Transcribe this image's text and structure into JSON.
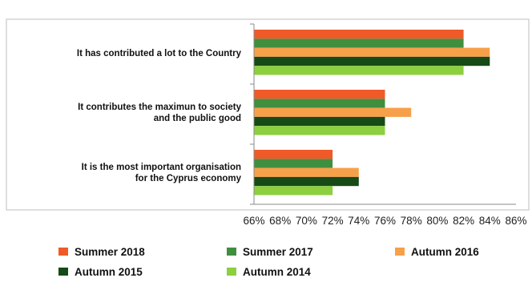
{
  "chart_data": {
    "type": "bar",
    "orientation": "horizontal",
    "categories": [
      [
        "It has contributed a lot to the Country"
      ],
      [
        "It contributes the maximun to society",
        "and the public good"
      ],
      [
        "It is the most important organisation",
        "for the Cyprus economy"
      ]
    ],
    "series": [
      {
        "name": "Summer 2018",
        "color": "#f05a28",
        "values": [
          82,
          76,
          72
        ]
      },
      {
        "name": "Summer 2017",
        "color": "#3f8f3f",
        "values": [
          82,
          76,
          72
        ]
      },
      {
        "name": "Autumn 2016",
        "color": "#f7a04a",
        "values": [
          84,
          78,
          74
        ]
      },
      {
        "name": "Autumn 2015",
        "color": "#164a17",
        "values": [
          84,
          76,
          74
        ]
      },
      {
        "name": "Autumn 2014",
        "color": "#8ccf3f",
        "values": [
          82,
          76,
          72
        ]
      }
    ],
    "xlim": [
      66,
      86
    ],
    "x_ticks": [
      "66%",
      "68%",
      "70%",
      "72%",
      "74%",
      "76%",
      "78%",
      "80%",
      "82%",
      "84%",
      "86%"
    ],
    "grid": false,
    "legend_position": "bottom"
  }
}
